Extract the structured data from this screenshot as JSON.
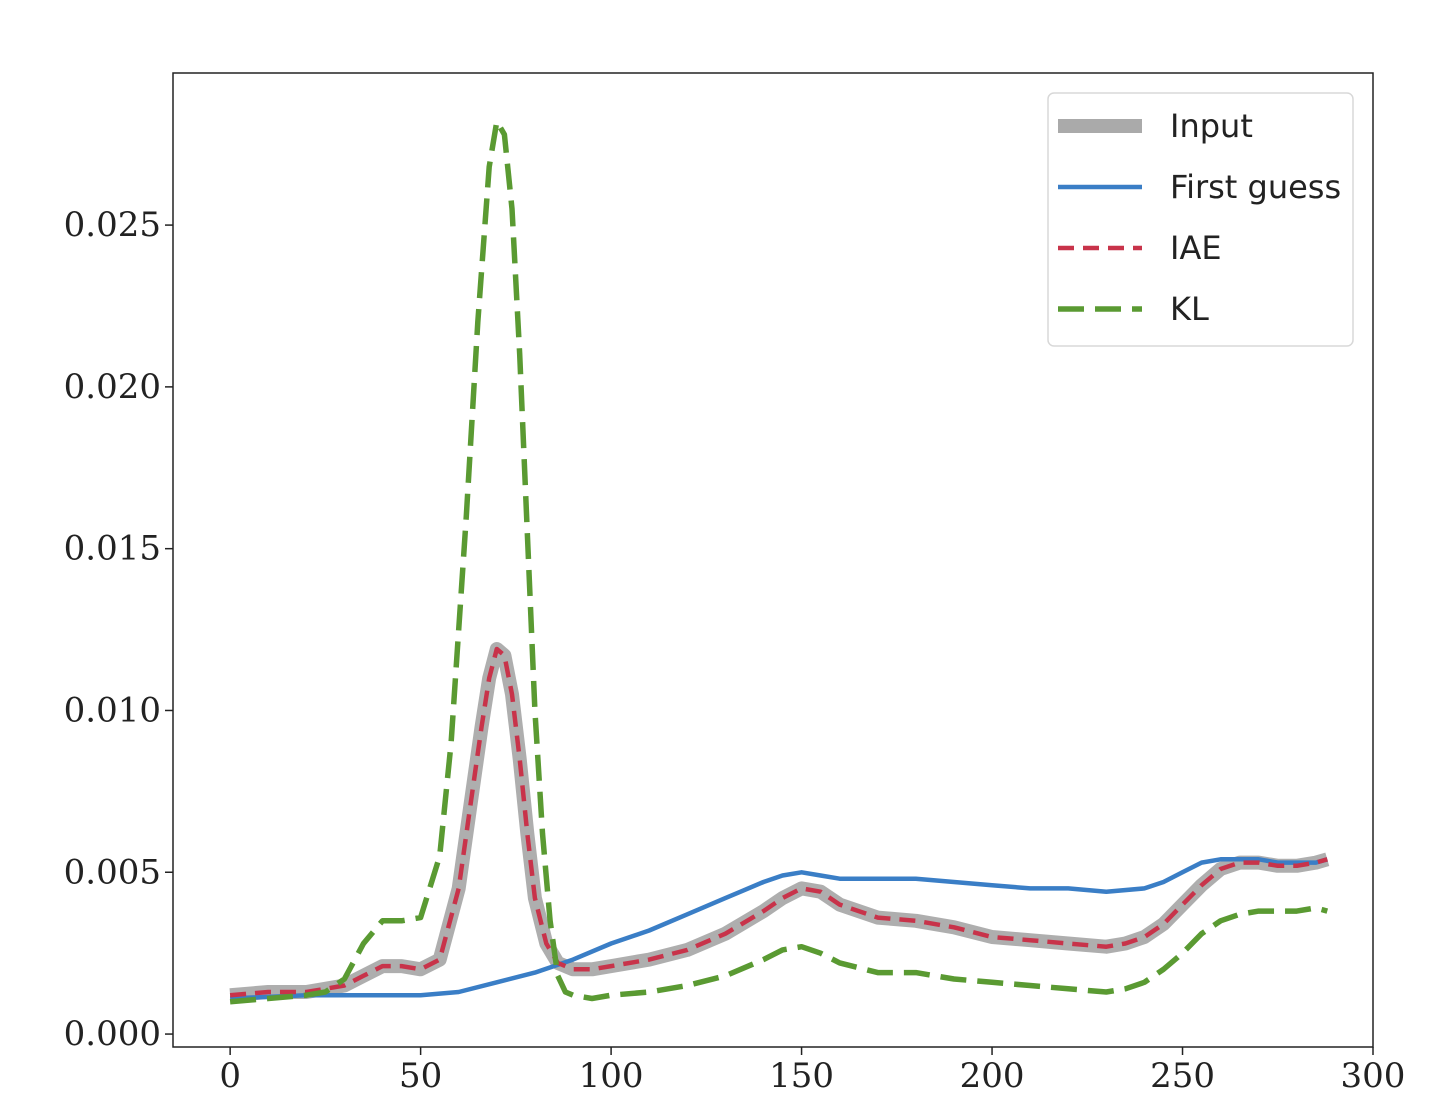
{
  "chart_data": {
    "type": "line",
    "title": "",
    "xlabel": "",
    "ylabel": "",
    "xlim": [
      -15,
      300
    ],
    "ylim": [
      -0.0004,
      0.0297
    ],
    "xticks": [
      0,
      50,
      100,
      150,
      200,
      250,
      300
    ],
    "xtick_labels": [
      "0",
      "50",
      "100",
      "150",
      "200",
      "250",
      "300"
    ],
    "yticks": [
      0.0,
      0.005,
      0.01,
      0.015,
      0.02,
      0.025
    ],
    "ytick_labels": [
      "0.000",
      "0.005",
      "0.010",
      "0.015",
      "0.020",
      "0.025"
    ],
    "grid": false,
    "legend_position": "top-right",
    "series": [
      {
        "name": "Input",
        "color": "#aaaaaa",
        "style": "solid-thick",
        "x": [
          0,
          10,
          20,
          25,
          30,
          35,
          40,
          45,
          50,
          55,
          60,
          63,
          66,
          68,
          70,
          72,
          74,
          76,
          78,
          80,
          83,
          86,
          90,
          95,
          100,
          110,
          120,
          130,
          140,
          145,
          150,
          155,
          160,
          170,
          180,
          190,
          200,
          210,
          220,
          230,
          235,
          240,
          245,
          250,
          255,
          260,
          265,
          270,
          275,
          280,
          285,
          288
        ],
        "y": [
          0.0012,
          0.0013,
          0.0013,
          0.0014,
          0.0015,
          0.0018,
          0.0021,
          0.0021,
          0.002,
          0.0023,
          0.0045,
          0.007,
          0.0095,
          0.011,
          0.0119,
          0.0117,
          0.0105,
          0.0085,
          0.0062,
          0.0042,
          0.0028,
          0.0022,
          0.002,
          0.002,
          0.0021,
          0.0023,
          0.0026,
          0.0031,
          0.0038,
          0.0042,
          0.0045,
          0.0044,
          0.004,
          0.0036,
          0.0035,
          0.0033,
          0.003,
          0.0029,
          0.0028,
          0.0027,
          0.0028,
          0.003,
          0.0034,
          0.004,
          0.0046,
          0.0051,
          0.0053,
          0.0053,
          0.0052,
          0.0052,
          0.0053,
          0.0054
        ]
      },
      {
        "name": "First guess",
        "color": "#3a7ec6",
        "style": "solid",
        "x": [
          0,
          20,
          40,
          50,
          60,
          70,
          80,
          90,
          100,
          110,
          120,
          130,
          140,
          145,
          150,
          155,
          160,
          170,
          180,
          190,
          200,
          210,
          220,
          230,
          240,
          245,
          250,
          255,
          260,
          265,
          270,
          275,
          280,
          285,
          288
        ],
        "y": [
          0.0011,
          0.0012,
          0.0012,
          0.0012,
          0.0013,
          0.0016,
          0.0019,
          0.0023,
          0.0028,
          0.0032,
          0.0037,
          0.0042,
          0.0047,
          0.0049,
          0.005,
          0.0049,
          0.0048,
          0.0048,
          0.0048,
          0.0047,
          0.0046,
          0.0045,
          0.0045,
          0.0044,
          0.0045,
          0.0047,
          0.005,
          0.0053,
          0.0054,
          0.0054,
          0.0054,
          0.0053,
          0.0053,
          0.0053,
          0.0054
        ]
      },
      {
        "name": "IAE",
        "color": "#c8334a",
        "style": "dashed",
        "x": [
          0,
          10,
          20,
          25,
          30,
          35,
          40,
          45,
          50,
          55,
          60,
          63,
          66,
          68,
          70,
          72,
          74,
          76,
          78,
          80,
          83,
          86,
          90,
          95,
          100,
          110,
          120,
          130,
          140,
          145,
          150,
          155,
          160,
          170,
          180,
          190,
          200,
          210,
          220,
          230,
          235,
          240,
          245,
          250,
          255,
          260,
          265,
          270,
          275,
          280,
          285,
          288
        ],
        "y": [
          0.0012,
          0.0013,
          0.0013,
          0.0014,
          0.0015,
          0.0018,
          0.0021,
          0.0021,
          0.002,
          0.0023,
          0.0045,
          0.007,
          0.0095,
          0.011,
          0.0119,
          0.0117,
          0.0105,
          0.0085,
          0.0062,
          0.0042,
          0.0028,
          0.0022,
          0.002,
          0.002,
          0.0021,
          0.0023,
          0.0026,
          0.0031,
          0.0038,
          0.0042,
          0.0045,
          0.0044,
          0.004,
          0.0036,
          0.0035,
          0.0033,
          0.003,
          0.0029,
          0.0028,
          0.0027,
          0.0028,
          0.003,
          0.0034,
          0.004,
          0.0046,
          0.0051,
          0.0053,
          0.0053,
          0.0052,
          0.0052,
          0.0053,
          0.0054
        ]
      },
      {
        "name": "KL",
        "color": "#5a9a32",
        "style": "dashed-long",
        "x": [
          0,
          10,
          20,
          25,
          30,
          35,
          40,
          45,
          50,
          55,
          58,
          62,
          65,
          68,
          70,
          72,
          74,
          76,
          78,
          80,
          82,
          84,
          86,
          88,
          90,
          95,
          100,
          110,
          120,
          130,
          140,
          145,
          150,
          155,
          160,
          170,
          180,
          190,
          200,
          210,
          220,
          230,
          235,
          240,
          245,
          250,
          255,
          260,
          265,
          270,
          275,
          280,
          285,
          288
        ],
        "y": [
          0.001,
          0.0011,
          0.0012,
          0.0013,
          0.0017,
          0.0028,
          0.0035,
          0.0035,
          0.0036,
          0.0055,
          0.009,
          0.016,
          0.022,
          0.0268,
          0.0282,
          0.0278,
          0.0255,
          0.021,
          0.0155,
          0.01,
          0.0062,
          0.0035,
          0.0018,
          0.0013,
          0.0012,
          0.0011,
          0.0012,
          0.0013,
          0.0015,
          0.0018,
          0.0023,
          0.0026,
          0.0027,
          0.0025,
          0.0022,
          0.0019,
          0.0019,
          0.0017,
          0.0016,
          0.0015,
          0.0014,
          0.0013,
          0.0014,
          0.0016,
          0.002,
          0.0025,
          0.0031,
          0.0035,
          0.0037,
          0.0038,
          0.0038,
          0.0038,
          0.0039,
          0.0038
        ]
      }
    ]
  }
}
